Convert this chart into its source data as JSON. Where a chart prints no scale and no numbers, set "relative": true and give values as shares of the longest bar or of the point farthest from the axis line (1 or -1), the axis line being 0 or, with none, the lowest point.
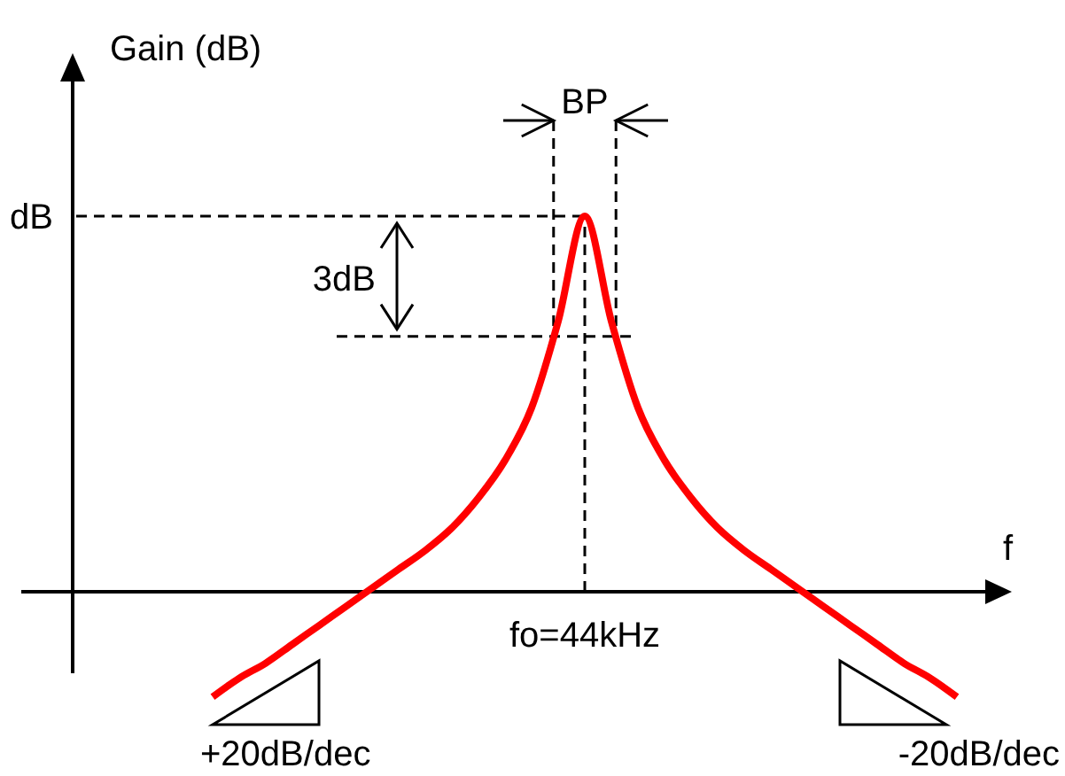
{
  "chart_data": {
    "type": "line",
    "relative": true,
    "ylabel": "Gain (dB)",
    "xlabel": "f",
    "categories": [
      null,
      null,
      null,
      null,
      null,
      null,
      null,
      null,
      null,
      null,
      null,
      null,
      null,
      null,
      null,
      null,
      null,
      null,
      null,
      null,
      null,
      null,
      null,
      null,
      null,
      null,
      null,
      null,
      null
    ],
    "series": [
      {
        "color": "#ff0000",
        "values": [
          -0.28,
          -0.23,
          -0.19,
          -0.14,
          -0.09,
          -0.04,
          0.01,
          0.06,
          0.11,
          0.17,
          0.25,
          0.35,
          0.49,
          0.72,
          1,
          0.72,
          0.49,
          0.35,
          0.25,
          0.17,
          0.11,
          0.06,
          0.01,
          -0.04,
          -0.09,
          -0.14,
          -0.19,
          -0.23,
          -0.28
        ]
      }
    ],
    "ref_lines": [
      {
        "axis": "y",
        "value": 1,
        "label": "dB",
        "line_style": "dashed"
      },
      {
        "axis": "y",
        "value": 0.68,
        "line_style": "dashed"
      }
    ],
    "annotations": [
      "BP",
      "3dB",
      "fo=44kHz",
      "+20dB/dec",
      "-20dB/dec"
    ],
    "line_style": "solid"
  }
}
